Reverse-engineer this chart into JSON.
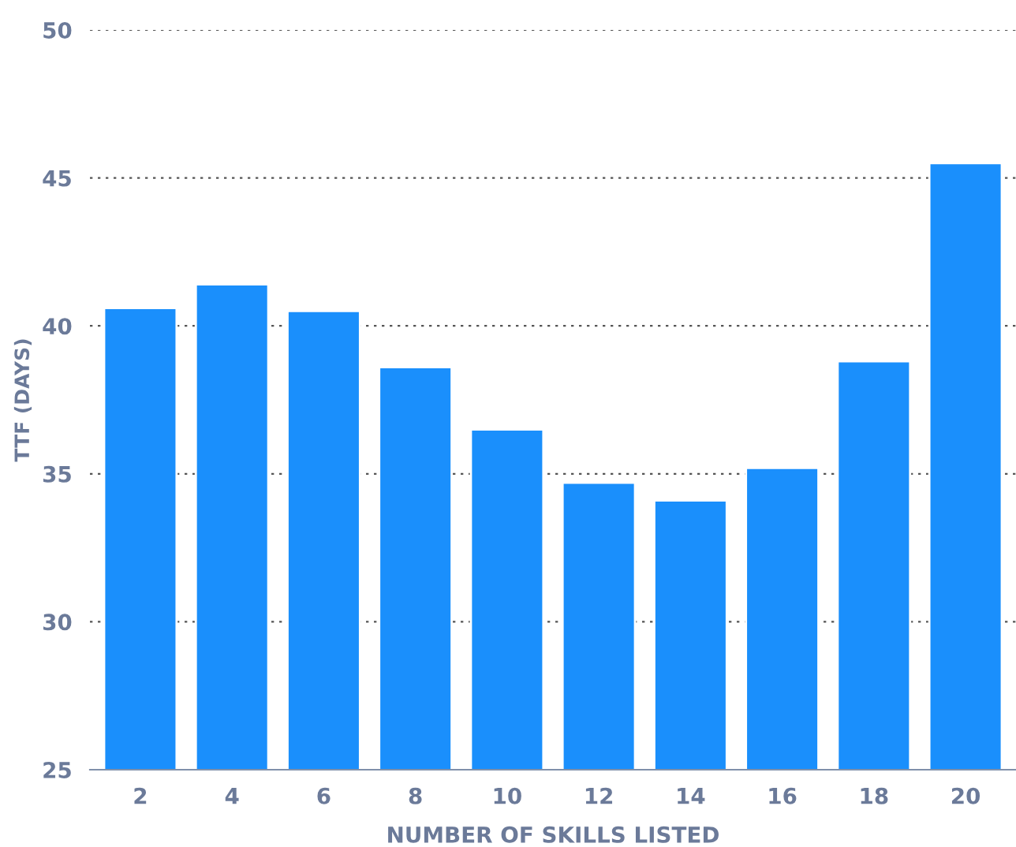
{
  "chart_data": {
    "type": "bar",
    "xlabel": "NUMBER OF SKILLS LISTED",
    "ylabel": "TTF (DAYS)",
    "categories": [
      "2",
      "4",
      "6",
      "8",
      "10",
      "12",
      "14",
      "16",
      "18",
      "20"
    ],
    "values": [
      40.6,
      41.4,
      40.5,
      38.6,
      36.5,
      34.7,
      34.1,
      35.2,
      38.8,
      45.5
    ],
    "color": "#1a8ffc",
    "ylim": [
      25,
      50
    ],
    "yticks": [
      25,
      30,
      35,
      40,
      45,
      50
    ],
    "grid": "y"
  }
}
